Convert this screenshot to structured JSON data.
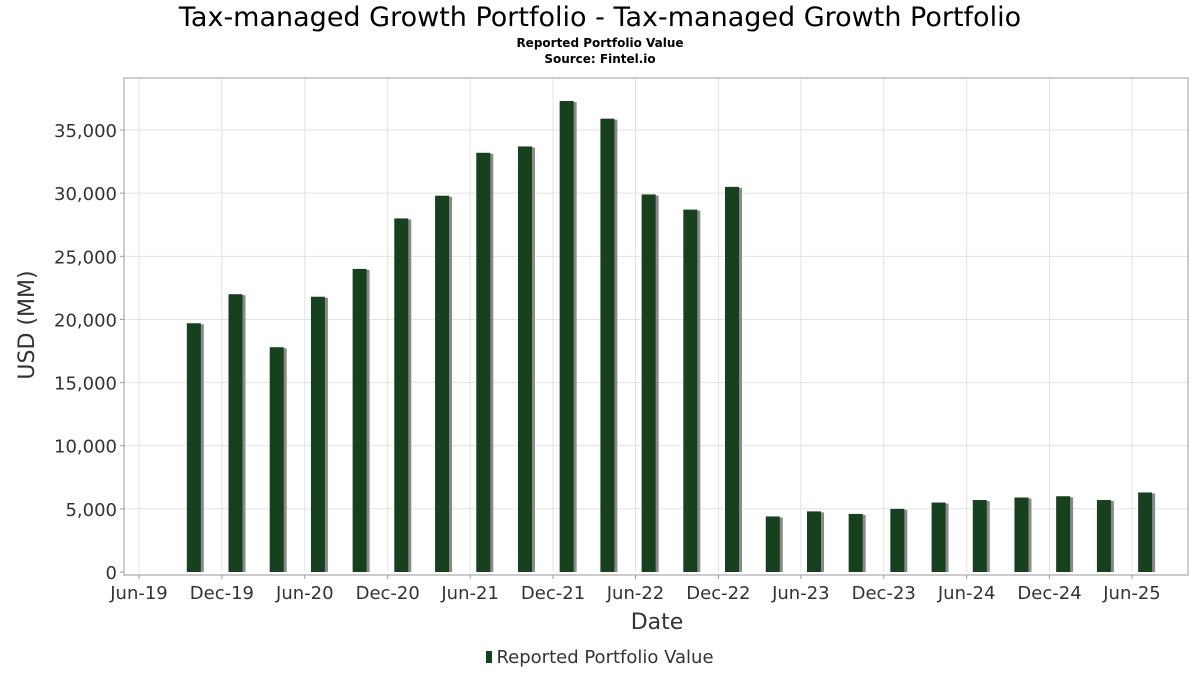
{
  "chart_data": {
    "type": "bar",
    "title": "Tax-managed Growth Portfolio - Tax-managed Growth Portfolio",
    "subtitle": "Reported Portfolio Value",
    "source": "Source: Fintel.io",
    "xlabel": "Date",
    "ylabel": "USD (MM)",
    "ylim": [
      0,
      38000
    ],
    "yticks": [
      0,
      5000,
      10000,
      15000,
      20000,
      25000,
      30000,
      35000
    ],
    "ytick_labels": [
      "0",
      "5,000",
      "10,000",
      "15,000",
      "20,000",
      "25,000",
      "30,000",
      "35,000"
    ],
    "xlim": [
      "2019-06-01",
      "2025-11-01"
    ],
    "xticks": [
      "2019-06-01",
      "2019-12-01",
      "2020-06-01",
      "2020-12-01",
      "2021-06-01",
      "2021-12-01",
      "2022-06-01",
      "2022-12-01",
      "2023-06-01",
      "2023-12-01",
      "2024-06-01",
      "2024-12-01",
      "2025-06-01"
    ],
    "xtick_labels": [
      "Jun-19",
      "Dec-19",
      "Jun-20",
      "Dec-20",
      "Jun-21",
      "Dec-21",
      "Jun-22",
      "Dec-22",
      "Jun-23",
      "Dec-23",
      "Jun-24",
      "Dec-24",
      "Jun-25"
    ],
    "grid": true,
    "legend_position": "bottom-center",
    "series": [
      {
        "name": "Reported Portfolio Value",
        "color": "#17401f",
        "x": [
          "2019-09-30",
          "2019-12-31",
          "2020-03-31",
          "2020-06-30",
          "2020-09-30",
          "2020-12-31",
          "2021-03-31",
          "2021-06-30",
          "2021-09-30",
          "2021-12-31",
          "2022-03-31",
          "2022-06-30",
          "2022-09-30",
          "2022-12-31",
          "2023-03-31",
          "2023-06-30",
          "2023-09-30",
          "2023-12-31",
          "2024-03-31",
          "2024-06-30",
          "2024-09-30",
          "2024-12-31",
          "2025-03-31",
          "2025-06-30"
        ],
        "values": [
          19700,
          22000,
          17800,
          21800,
          24000,
          28000,
          29800,
          33200,
          33700,
          37300,
          35900,
          29900,
          28700,
          30500,
          4400,
          4800,
          4600,
          5000,
          5500,
          5700,
          5900,
          6000,
          5700,
          6300
        ]
      }
    ]
  }
}
